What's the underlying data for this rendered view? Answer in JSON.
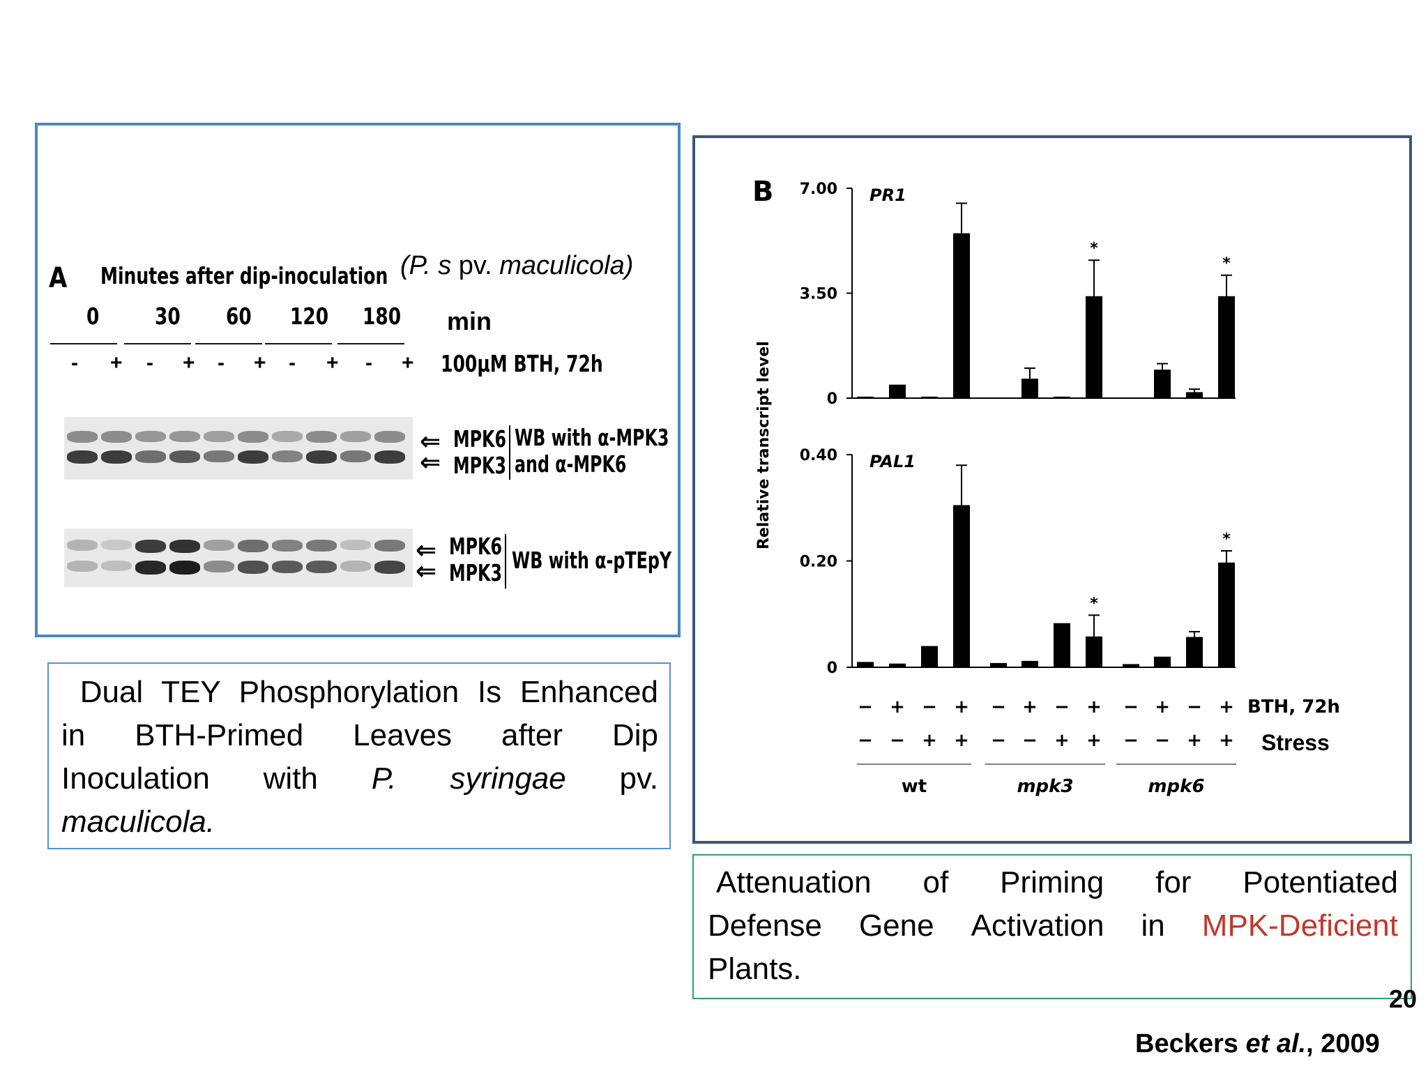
{
  "panel_a": {
    "letter": "A",
    "heading": "Minutes after dip-inoculation",
    "pathogen_open": "(P. s",
    "pathogen_pv": "pv.",
    "pathogen_name": "maculicola)",
    "time_points": [
      "0",
      "30",
      "60",
      "120",
      "180"
    ],
    "time_unit": "min",
    "treatment_signs": [
      "-",
      "+",
      "-",
      "+",
      "-",
      "+",
      "-",
      "+",
      "-",
      "+"
    ],
    "treatment_label": "100µM BTH, 72h",
    "blot1": {
      "band_top": "MPK6",
      "band_bottom": "MPK3",
      "label_line1": "WB with α-MPK3",
      "label_line2": "and α-MPK6"
    },
    "blot2": {
      "band_top": "MPK6",
      "band_bottom": "MPK3",
      "label": "WB with α-pTEpY"
    },
    "blot1_intensity": [
      [
        0.45,
        0.85
      ],
      [
        0.45,
        0.85
      ],
      [
        0.4,
        0.6
      ],
      [
        0.4,
        0.7
      ],
      [
        0.35,
        0.55
      ],
      [
        0.45,
        0.85
      ],
      [
        0.3,
        0.5
      ],
      [
        0.45,
        0.85
      ],
      [
        0.35,
        0.55
      ],
      [
        0.45,
        0.85
      ]
    ],
    "blot2_intensity": [
      [
        0.25,
        0.25
      ],
      [
        0.15,
        0.2
      ],
      [
        0.85,
        0.95
      ],
      [
        0.9,
        1.0
      ],
      [
        0.35,
        0.45
      ],
      [
        0.6,
        0.75
      ],
      [
        0.5,
        0.7
      ],
      [
        0.55,
        0.7
      ],
      [
        0.2,
        0.25
      ],
      [
        0.55,
        0.8
      ]
    ]
  },
  "caption_a": {
    "line1": "Dual TEY Phosphorylation Is Enhanced",
    "line2_words": [
      "in",
      "BTH-Primed",
      "Leaves",
      "after",
      "Dip"
    ],
    "line3_a": "Inoculation",
    "line3_b": "with",
    "line3_c": "P.",
    "line3_d": "syringae",
    "line3_e": "pv.",
    "line4": "maculicola."
  },
  "panel_b": {
    "letter": "B",
    "ylabel": "Relative transcript level",
    "top_ticks": [
      "7.00",
      "3.50",
      "0"
    ],
    "bottom_ticks": [
      "0.40",
      "0.20",
      "0"
    ],
    "bth_label": "BTH, 72h",
    "stress_label": "Stress",
    "bth_signs": [
      "−",
      "+",
      "−",
      "+",
      "−",
      "+",
      "−",
      "+",
      "−",
      "+",
      "−",
      "+"
    ],
    "stress_signs": [
      "−",
      "−",
      "+",
      "+",
      "−",
      "−",
      "+",
      "+",
      "−",
      "−",
      "+",
      "+"
    ],
    "groups": [
      "wt",
      "mpk3",
      "mpk6"
    ],
    "star": "*"
  },
  "chart_data": [
    {
      "type": "bar",
      "title": "PR1",
      "ylabel": "Relative transcript level",
      "ylim": [
        0,
        7.0
      ],
      "categories": [
        "wt −/−",
        "wt +/−",
        "wt −/+",
        "wt +/+",
        "mpk3 −/−",
        "mpk3 +/−",
        "mpk3 −/+",
        "mpk3 +/+",
        "mpk6 −/−",
        "mpk6 +/−",
        "mpk6 −/+",
        "mpk6 +/+"
      ],
      "values": [
        0.05,
        0.45,
        0.05,
        5.5,
        null,
        0.65,
        0.05,
        3.4,
        null,
        0.95,
        0.2,
        3.4
      ],
      "errors": [
        0.02,
        0.05,
        0.02,
        1.0,
        null,
        0.35,
        0.02,
        1.2,
        null,
        0.2,
        0.1,
        0.7
      ],
      "significant": [
        false,
        false,
        false,
        false,
        false,
        false,
        false,
        true,
        false,
        false,
        false,
        true
      ]
    },
    {
      "type": "bar",
      "title": "PAL1",
      "ylabel": "Relative transcript level",
      "ylim": [
        0,
        0.4
      ],
      "categories": [
        "wt −/−",
        "wt +/−",
        "wt −/+",
        "wt +/+",
        "mpk3 −/−",
        "mpk3 +/−",
        "mpk3 −/+",
        "mpk3 +/+",
        "mpk6 −/−",
        "mpk6 +/−",
        "mpk6 −/+",
        "mpk6 +/+"
      ],
      "values": [
        0.01,
        0.007,
        0.04,
        0.305,
        0.008,
        0.012,
        0.083,
        0.058,
        0.006,
        0.02,
        0.057,
        0.197
      ],
      "errors": [
        0.002,
        0.002,
        0.003,
        0.075,
        0.002,
        0.002,
        0.003,
        0.04,
        0.001,
        0.002,
        0.01,
        0.022
      ],
      "significant": [
        false,
        false,
        false,
        false,
        false,
        false,
        false,
        true,
        false,
        false,
        false,
        true
      ]
    }
  ],
  "caption_b": {
    "line1_words": [
      "Attenuation",
      "of",
      "Priming",
      "for",
      "Potentiated"
    ],
    "line2_words": [
      "Defense",
      "Gene",
      "Activation",
      "in"
    ],
    "line2_red": "MPK-Deficient",
    "line3": "Plants."
  },
  "slide_number": "20",
  "citation": {
    "authors": "Beckers",
    "etal": "et al.",
    "year": ", 2009"
  }
}
